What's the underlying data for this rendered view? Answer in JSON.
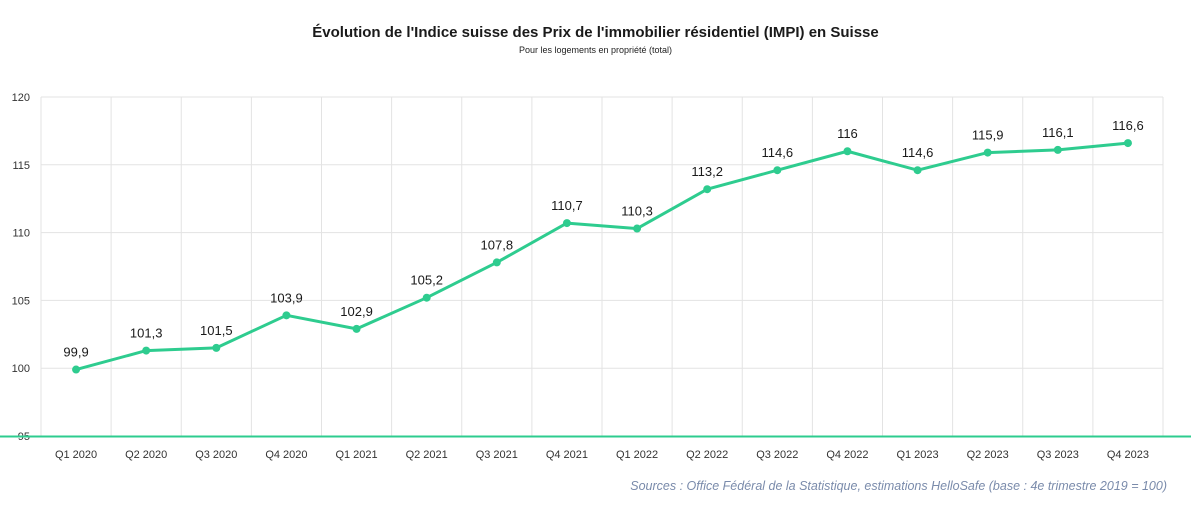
{
  "chart_data": {
    "type": "line",
    "title": "Évolution de l'Indice suisse des Prix de l'immobilier résidentiel (IMPI) en Suisse",
    "subtitle": "Pour les logements en propriété (total)",
    "xlabel": "",
    "ylabel": "",
    "categories": [
      "Q1 2020",
      "Q2 2020",
      "Q3 2020",
      "Q4 2020",
      "Q1 2021",
      "Q2 2021",
      "Q3 2021",
      "Q4 2021",
      "Q1 2022",
      "Q2 2022",
      "Q3 2022",
      "Q4 2022",
      "Q1 2023",
      "Q2 2023",
      "Q3 2023",
      "Q4 2023"
    ],
    "series": [
      {
        "name": "IMPI",
        "values": [
          99.9,
          101.3,
          101.5,
          103.9,
          102.9,
          105.2,
          107.8,
          110.7,
          110.3,
          113.2,
          114.6,
          116,
          114.6,
          115.9,
          116.1,
          116.6
        ],
        "data_labels": [
          "99,9",
          "101,3",
          "101,5",
          "103,9",
          "102,9",
          "105,2",
          "107,8",
          "110,7",
          "110,3",
          "113,2",
          "114,6",
          "116",
          "114,6",
          "115,9",
          "116,1",
          "116,6"
        ]
      }
    ],
    "ylim": [
      95,
      120
    ],
    "yticks": [
      95,
      100,
      105,
      110,
      115,
      120
    ],
    "grid": true,
    "legend": "none",
    "source": "Sources : Office Fédéral de la Statistique, estimations HelloSafe (base : 4e trimestre 2019 = 100)"
  },
  "colors": {
    "line": "#2ecc8f",
    "axis": "#2ecc8f",
    "grid": "#e3e3e3",
    "text": "#333333",
    "source": "#7a8bab"
  }
}
